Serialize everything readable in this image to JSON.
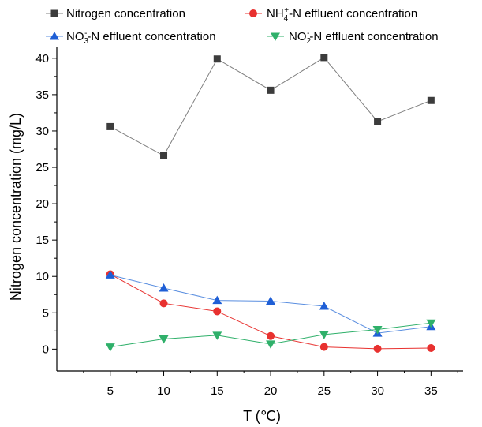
{
  "chart_data": {
    "type": "line",
    "xlabel": "T (℃)",
    "ylabel": "Nitrogen concentration (mg/L)",
    "x": [
      5,
      10,
      15,
      20,
      25,
      30,
      35
    ],
    "xlim": [
      0,
      38
    ],
    "ylim": [
      -3,
      41.5
    ],
    "xticks": [
      5,
      10,
      15,
      20,
      25,
      30,
      35
    ],
    "yticks": [
      0,
      5,
      10,
      15,
      20,
      25,
      30,
      35,
      40
    ],
    "grid": false,
    "legend_position": "top",
    "series": [
      {
        "name": "Nitrogen concentration",
        "legend": {
          "main": "Nitrogen concentration"
        },
        "marker": "square",
        "color": "#3c3c3c",
        "line_color": "#808080",
        "values": [
          30.6,
          26.6,
          39.9,
          35.6,
          40.1,
          31.3,
          34.2
        ]
      },
      {
        "name": "NH4+-N effluent concentration",
        "legend": {
          "pre": "NH",
          "sub": "4",
          "sup": "+",
          "post": "-N effluent concentration"
        },
        "marker": "circle",
        "color": "#e8312f",
        "line_color": "#e8312f",
        "values": [
          10.3,
          6.3,
          5.2,
          1.8,
          0.3,
          0.05,
          0.15
        ]
      },
      {
        "name": "NO3--N effluent concentration",
        "legend": {
          "pre": "NO",
          "sub": "3",
          "sup": "-",
          "post": "-N effluent concentration"
        },
        "marker": "triangle-up",
        "color": "#1f5fd6",
        "line_color": "#5b8fe0",
        "values": [
          10.2,
          8.4,
          6.7,
          6.6,
          5.9,
          2.2,
          3.1
        ]
      },
      {
        "name": "NO2--N effluent concentration",
        "legend": {
          "pre": "NO",
          "sub": "2",
          "sup": "-",
          "post": "-N effluent concentration"
        },
        "marker": "triangle-down",
        "color": "#2fb06a",
        "line_color": "#2fb06a",
        "values": [
          0.3,
          1.4,
          1.9,
          0.7,
          2.0,
          2.7,
          3.6
        ]
      }
    ]
  }
}
